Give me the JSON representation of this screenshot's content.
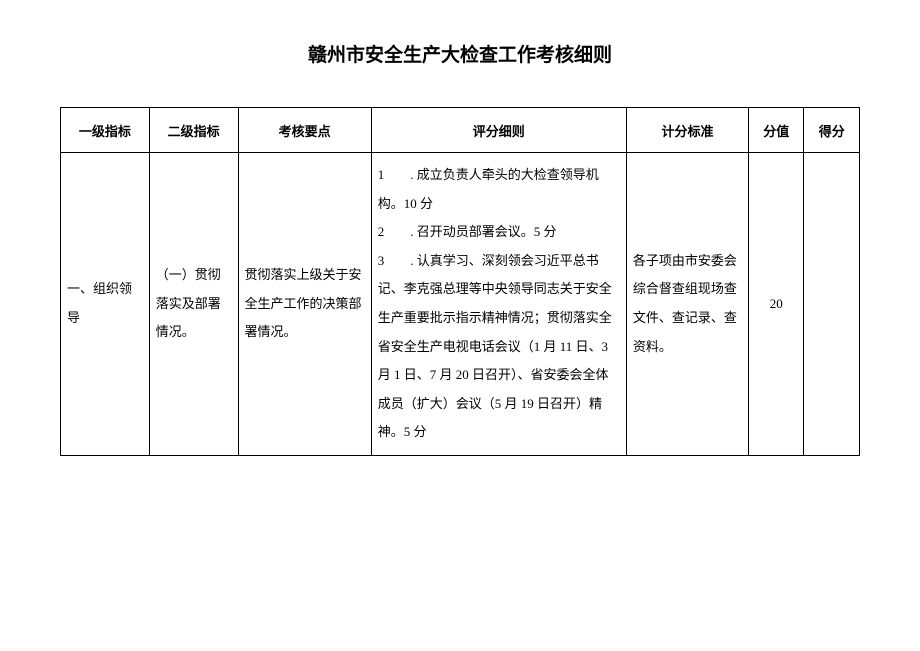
{
  "title": "赣州市安全生产大检查工作考核细则",
  "headers": {
    "level1": "一级指标",
    "level2": "二级指标",
    "keypoint": "考核要点",
    "rules": "评分细则",
    "standard": "计分标准",
    "score": "分值",
    "got": "得分"
  },
  "row1": {
    "level1": "一、组织领导",
    "level2": "（一）贯彻落实及部署情况。",
    "keypoint": "贯彻落实上级关于安全生产工作的决策部署情况。",
    "rule1": "1　　. 成立负责人牵头的大检查领导机构。10 分",
    "rule2": "2　　. 召开动员部署会议。5 分",
    "rule3": "3　　. 认真学习、深刻领会习近平总书记、李克强总理等中央领导同志关于安全生产重要批示指示精神情况；贯彻落实全省安全生产电视电话会议（1 月 11 日、3 月 1 日、7 月 20 日召开）、省安委会全体成员（扩大）会议（5 月 19 日召开）精神。5 分",
    "standard": "各子项由市安委会综合督查组现场查文件、查记录、查资料。",
    "score": "20",
    "got": ""
  }
}
